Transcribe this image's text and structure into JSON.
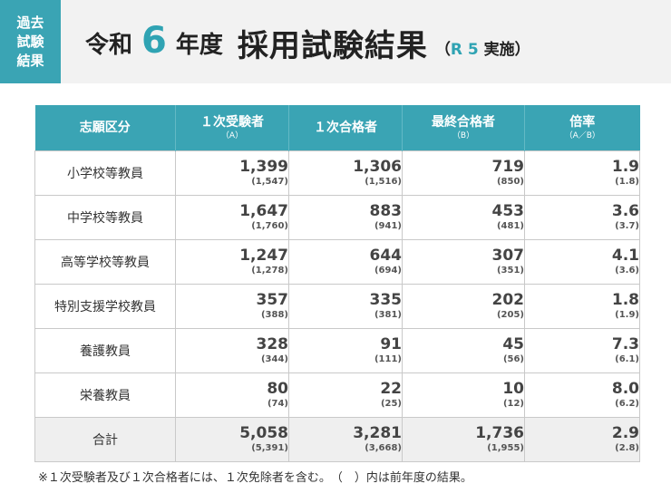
{
  "tag": {
    "line1": "過去",
    "line2": "試験",
    "line3": "結果"
  },
  "title": {
    "era": "令和",
    "number": "6",
    "year_suffix": "年度",
    "main": "採用試験結果",
    "note_open": "（",
    "note_r5": "R 5",
    "note_text": "実施）"
  },
  "table": {
    "headers": [
      {
        "main": "志願区分",
        "sub": ""
      },
      {
        "main": "１次受験者",
        "sub": "（A）"
      },
      {
        "main": "１次合格者",
        "sub": ""
      },
      {
        "main": "最終合格者",
        "sub": "（B）"
      },
      {
        "main": "倍率",
        "sub": "（A／B）"
      }
    ],
    "rows": [
      {
        "category": "小学校等教員",
        "applicants": "1,399",
        "applicants_prev": "(1,547)",
        "first_pass": "1,306",
        "first_pass_prev": "(1,516)",
        "final_pass": "719",
        "final_pass_prev": "(850)",
        "ratio": "1.9",
        "ratio_prev": "(1.8)"
      },
      {
        "category": "中学校等教員",
        "applicants": "1,647",
        "applicants_prev": "(1,760)",
        "first_pass": "883",
        "first_pass_prev": "(941)",
        "final_pass": "453",
        "final_pass_prev": "(481)",
        "ratio": "3.6",
        "ratio_prev": "(3.7)"
      },
      {
        "category": "高等学校等教員",
        "applicants": "1,247",
        "applicants_prev": "(1,278)",
        "first_pass": "644",
        "first_pass_prev": "(694)",
        "final_pass": "307",
        "final_pass_prev": "(351)",
        "ratio": "4.1",
        "ratio_prev": "(3.6)"
      },
      {
        "category": "特別支援学校教員",
        "applicants": "357",
        "applicants_prev": "(388)",
        "first_pass": "335",
        "first_pass_prev": "(381)",
        "final_pass": "202",
        "final_pass_prev": "(205)",
        "ratio": "1.8",
        "ratio_prev": "(1.9)"
      },
      {
        "category": "養護教員",
        "applicants": "328",
        "applicants_prev": "(344)",
        "first_pass": "91",
        "first_pass_prev": "(111)",
        "final_pass": "45",
        "final_pass_prev": "(56)",
        "ratio": "7.3",
        "ratio_prev": "(6.1)"
      },
      {
        "category": "栄養教員",
        "applicants": "80",
        "applicants_prev": "(74)",
        "first_pass": "22",
        "first_pass_prev": "(25)",
        "final_pass": "10",
        "final_pass_prev": "(12)",
        "ratio": "8.0",
        "ratio_prev": "(6.2)"
      }
    ],
    "total": {
      "category": "合計",
      "applicants": "5,058",
      "applicants_prev": "(5,391)",
      "first_pass": "3,281",
      "first_pass_prev": "(3,668)",
      "final_pass": "1,736",
      "final_pass_prev": "(1,955)",
      "ratio": "2.9",
      "ratio_prev": "(2.8)"
    }
  },
  "footnote": "※１次受験者及び１次合格者には、１次免除者を含む。　（　）内は前年度の結果。",
  "colors": {
    "accent": "#3aa4b4",
    "title_number": "#2fa3b3",
    "header_bg": "#f2f2f2",
    "total_row_bg": "#efefef"
  }
}
